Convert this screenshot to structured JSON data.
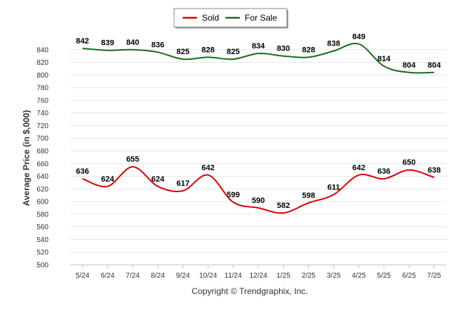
{
  "chart_data": {
    "type": "line",
    "ylabel": "Average Price (in $,000)",
    "xlabel": "",
    "ylim": [
      500,
      860
    ],
    "ytick_step": 20,
    "grid": true,
    "legend_position": "top-center",
    "categories": [
      "5/24",
      "6/24",
      "7/24",
      "8/24",
      "9/24",
      "10/24",
      "11/24",
      "12/24",
      "1/25",
      "2/25",
      "3/25",
      "4/25",
      "5/25",
      "6/25",
      "7/25"
    ],
    "series": [
      {
        "name": "Sold",
        "color": "#e00000",
        "values": [
          636,
          624,
          655,
          624,
          617,
          642,
          599,
          590,
          582,
          598,
          611,
          642,
          636,
          650,
          638
        ]
      },
      {
        "name": "For Sale",
        "color": "#1a6e1a",
        "values": [
          842,
          839,
          840,
          836,
          825,
          828,
          825,
          834,
          830,
          828,
          838,
          849,
          814,
          804,
          804
        ]
      }
    ],
    "footer": "Copyright © Trendgraphix, Inc."
  }
}
